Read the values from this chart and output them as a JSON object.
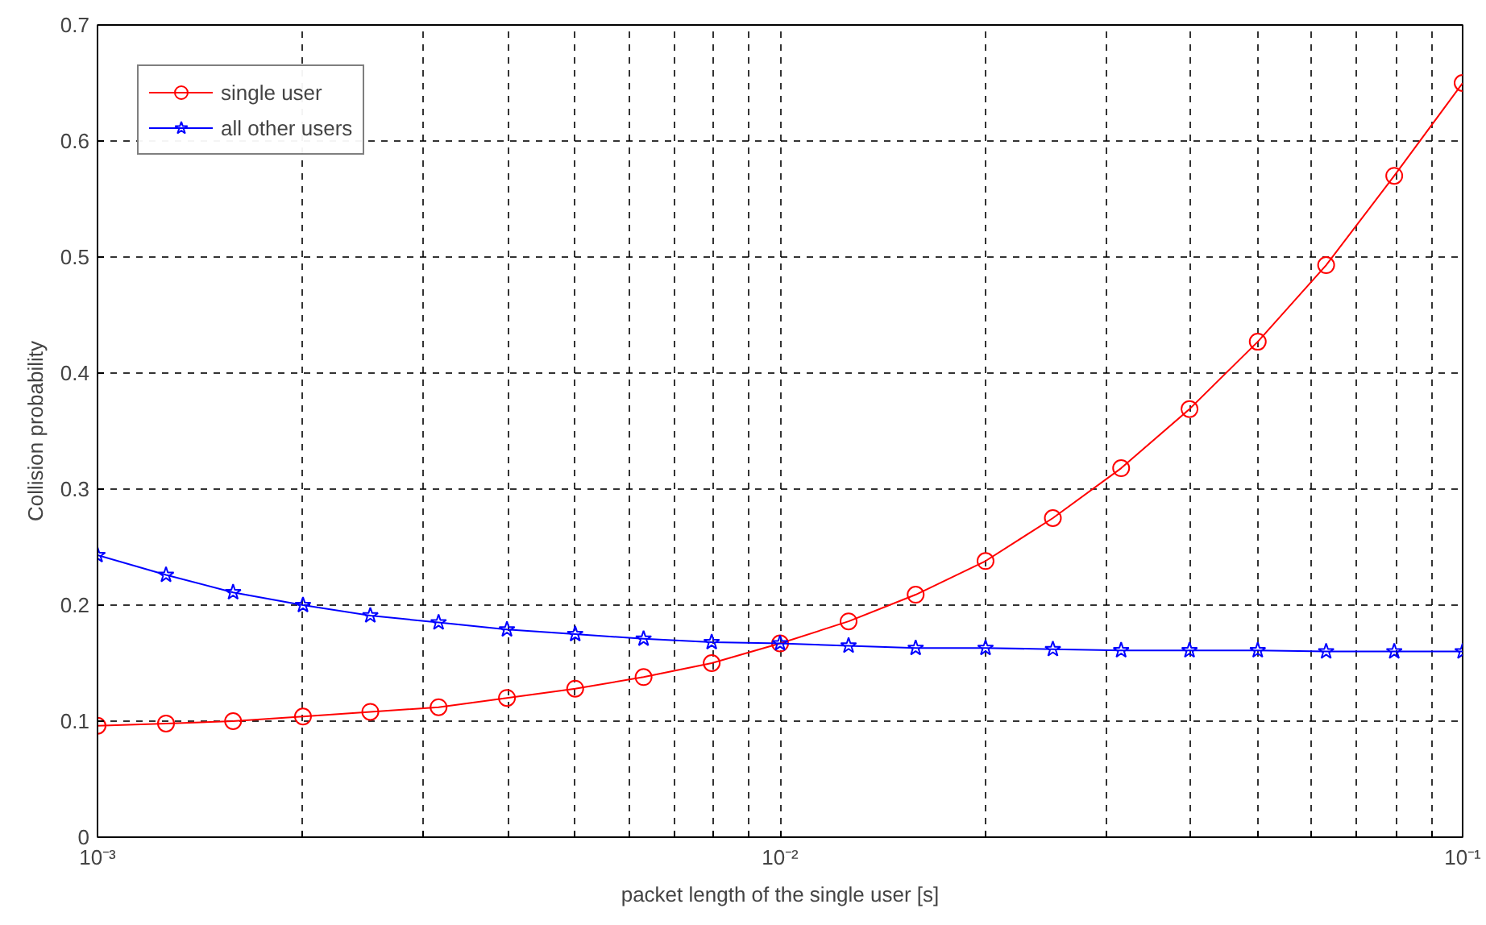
{
  "chart_data": {
    "type": "line",
    "xlabel": "packet length of the single user [s]",
    "ylabel": "Collision probability",
    "x": [
      0.001,
      0.00126,
      0.00158,
      0.002,
      0.00251,
      0.00316,
      0.00398,
      0.00501,
      0.00631,
      0.00794,
      0.01,
      0.0126,
      0.0158,
      0.02,
      0.0251,
      0.0316,
      0.0398,
      0.0501,
      0.0631,
      0.0794,
      0.1
    ],
    "series": [
      {
        "name": "single user",
        "color": "#ff0000",
        "marker": "circle",
        "values": [
          0.096,
          0.098,
          0.1,
          0.104,
          0.108,
          0.112,
          0.12,
          0.128,
          0.138,
          0.15,
          0.167,
          0.186,
          0.209,
          0.238,
          0.275,
          0.318,
          0.369,
          0.427,
          0.493,
          0.57,
          0.65
        ]
      },
      {
        "name": "all other users",
        "color": "#0000ff",
        "marker": "star",
        "values": [
          0.243,
          0.226,
          0.211,
          0.2,
          0.191,
          0.185,
          0.179,
          0.175,
          0.171,
          0.168,
          0.167,
          0.165,
          0.163,
          0.163,
          0.162,
          0.161,
          0.161,
          0.161,
          0.16,
          0.16,
          0.16
        ]
      }
    ],
    "log": "x",
    "xlim": [
      0.001,
      0.1
    ],
    "xticks": [
      {
        "value": 0.001,
        "label": "10⁻³"
      },
      {
        "value": 0.002,
        "label": null
      },
      {
        "value": 0.003,
        "label": null
      },
      {
        "value": 0.004,
        "label": null
      },
      {
        "value": 0.005,
        "label": null
      },
      {
        "value": 0.006,
        "label": null
      },
      {
        "value": 0.007,
        "label": null
      },
      {
        "value": 0.008,
        "label": null
      },
      {
        "value": 0.009,
        "label": null
      },
      {
        "value": 0.01,
        "label": "10⁻²"
      },
      {
        "value": 0.02,
        "label": null
      },
      {
        "value": 0.03,
        "label": null
      },
      {
        "value": 0.04,
        "label": null
      },
      {
        "value": 0.05,
        "label": null
      },
      {
        "value": 0.06,
        "label": null
      },
      {
        "value": 0.07,
        "label": null
      },
      {
        "value": 0.08,
        "label": null
      },
      {
        "value": 0.09,
        "label": null
      },
      {
        "value": 0.1,
        "label": "10⁻¹"
      }
    ],
    "ylim": [
      0,
      0.7
    ],
    "yticks": [
      0,
      0.1,
      0.2,
      0.3,
      0.4,
      0.5,
      0.6,
      0.7
    ],
    "grid": true,
    "legend": "top left",
    "line_style": "solid"
  }
}
